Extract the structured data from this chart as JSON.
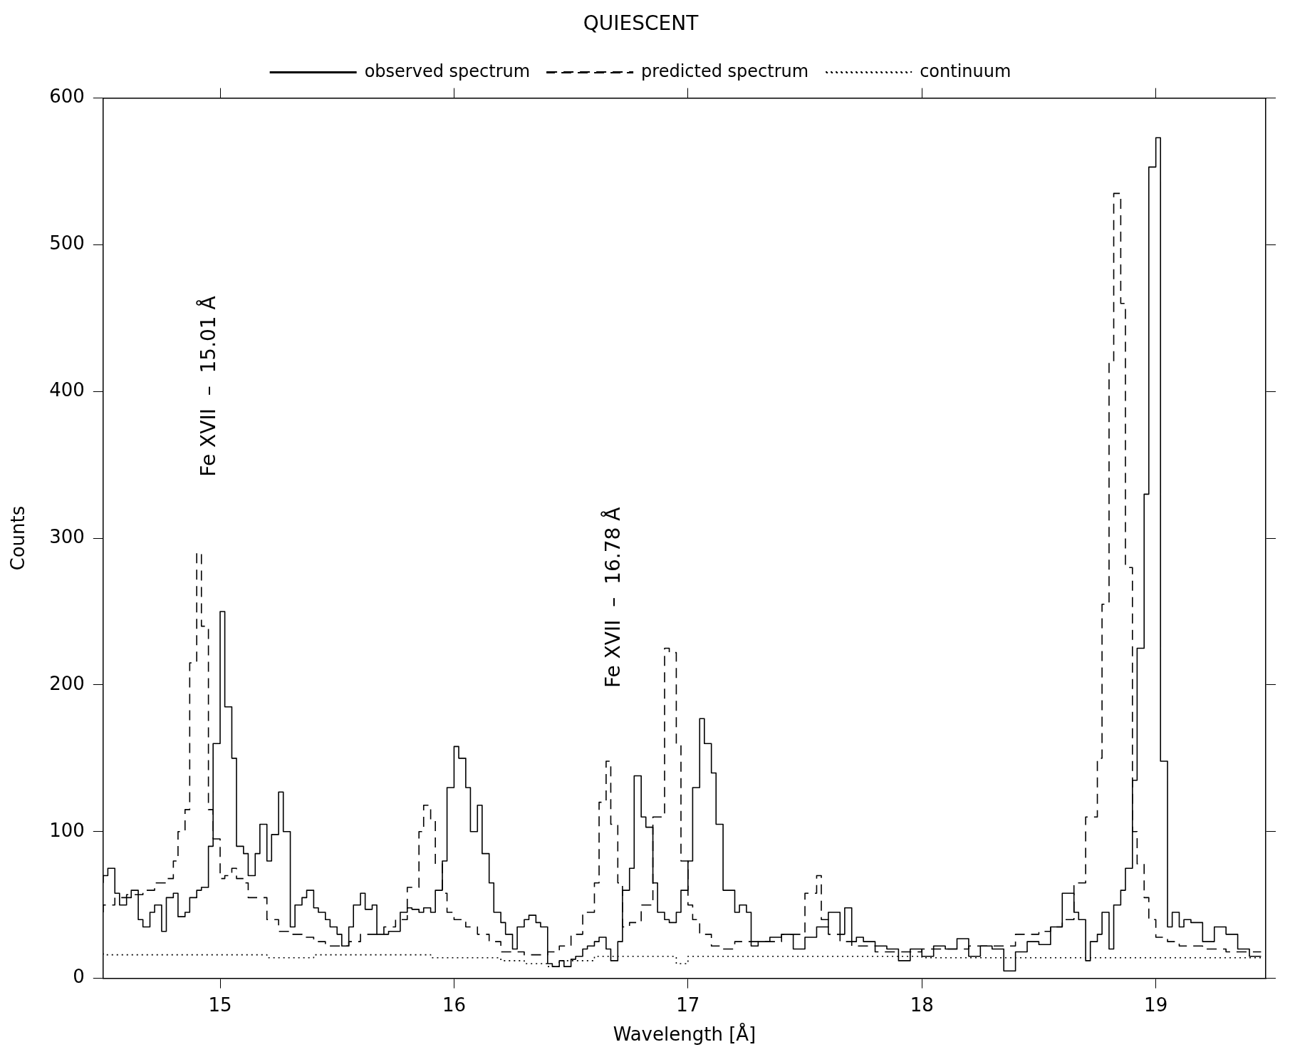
{
  "chart_data": {
    "type": "step",
    "title": "QUIESCENT",
    "xlabel": "Wavelength [Å]",
    "ylabel": "Counts",
    "xlim": [
      14.5,
      19.47
    ],
    "xticks": [
      15,
      16,
      17,
      18,
      19
    ],
    "ylim": [
      0,
      600
    ],
    "yticks": [
      0,
      100,
      200,
      300,
      400,
      500,
      600
    ],
    "grid": false,
    "legend": "top",
    "annotations": [
      "Fe XVII  –  15.01 Å",
      "Fe XVII  –  16.78 Å"
    ],
    "series": [
      {
        "name": "observed spectrum",
        "color": "#000000",
        "line_style": "solid",
        "x": [
          14.5,
          14.52,
          14.55,
          14.57,
          14.6,
          14.62,
          14.65,
          14.67,
          14.7,
          14.72,
          14.75,
          14.77,
          14.8,
          14.82,
          14.85,
          14.87,
          14.9,
          14.92,
          14.95,
          14.97,
          15.0,
          15.02,
          15.05,
          15.07,
          15.1,
          15.12,
          15.15,
          15.17,
          15.2,
          15.22,
          15.25,
          15.27,
          15.3,
          15.32,
          15.35,
          15.37,
          15.4,
          15.42,
          15.45,
          15.47,
          15.5,
          15.52,
          15.55,
          15.57,
          15.6,
          15.62,
          15.65,
          15.67,
          15.7,
          15.72,
          15.75,
          15.77,
          15.8,
          15.82,
          15.85,
          15.87,
          15.9,
          15.92,
          15.95,
          15.97,
          16.0,
          16.02,
          16.05,
          16.07,
          16.1,
          16.12,
          16.15,
          16.17,
          16.2,
          16.22,
          16.25,
          16.27,
          16.3,
          16.32,
          16.35,
          16.37,
          16.4,
          16.42,
          16.45,
          16.47,
          16.5,
          16.52,
          16.55,
          16.57,
          16.6,
          16.62,
          16.65,
          16.67,
          16.7,
          16.72,
          16.75,
          16.77,
          16.8,
          16.82,
          16.85,
          16.87,
          16.9,
          16.92,
          16.95,
          16.97,
          17.0,
          17.02,
          17.05,
          17.07,
          17.1,
          17.12,
          17.15,
          17.17,
          17.2,
          17.22,
          17.25,
          17.27,
          17.3,
          17.35,
          17.4,
          17.45,
          17.5,
          17.55,
          17.6,
          17.65,
          17.67,
          17.7,
          17.72,
          17.75,
          17.8,
          17.85,
          17.9,
          17.95,
          18.0,
          18.05,
          18.1,
          18.15,
          18.2,
          18.25,
          18.3,
          18.35,
          18.4,
          18.45,
          18.5,
          18.55,
          18.6,
          18.65,
          18.67,
          18.7,
          18.72,
          18.75,
          18.77,
          18.8,
          18.82,
          18.85,
          18.87,
          18.9,
          18.92,
          18.95,
          18.97,
          19.0,
          19.02,
          19.05,
          19.07,
          19.1,
          19.12,
          19.15,
          19.2,
          19.25,
          19.3,
          19.35,
          19.4,
          19.45
        ],
        "values": [
          65,
          70,
          75,
          58,
          50,
          55,
          60,
          40,
          35,
          45,
          50,
          32,
          55,
          58,
          42,
          45,
          55,
          60,
          62,
          90,
          160,
          250,
          185,
          150,
          90,
          85,
          70,
          85,
          105,
          80,
          98,
          127,
          100,
          35,
          50,
          55,
          60,
          48,
          45,
          40,
          35,
          30,
          22,
          35,
          50,
          58,
          47,
          50,
          30,
          30,
          32,
          32,
          45,
          48,
          47,
          45,
          48,
          45,
          60,
          80,
          130,
          158,
          150,
          130,
          100,
          118,
          85,
          65,
          45,
          38,
          30,
          20,
          35,
          40,
          43,
          38,
          35,
          10,
          8,
          12,
          8,
          13,
          15,
          20,
          22,
          25,
          28,
          20,
          12,
          25,
          60,
          75,
          138,
          110,
          103,
          65,
          45,
          40,
          38,
          45,
          60,
          80,
          130,
          177,
          160,
          140,
          105,
          60,
          60,
          45,
          50,
          45,
          22,
          25,
          28,
          30,
          20,
          28,
          35,
          45,
          30,
          48,
          25,
          28,
          25,
          22,
          20,
          12,
          20,
          15,
          22,
          20,
          27,
          15,
          22,
          20,
          5,
          18,
          25,
          23,
          35,
          58,
          45,
          40,
          12,
          25,
          30,
          45,
          20,
          50,
          60,
          75,
          135,
          225,
          330,
          553,
          573,
          148,
          35,
          45,
          35,
          40,
          38,
          25,
          35,
          30,
          20,
          15
        ]
      },
      {
        "name": "predicted spectrum",
        "color": "#000000",
        "line_style": "dashed",
        "x": [
          14.5,
          14.55,
          14.6,
          14.67,
          14.72,
          14.77,
          14.8,
          14.82,
          14.85,
          14.87,
          14.9,
          14.92,
          14.95,
          14.97,
          15.0,
          15.02,
          15.05,
          15.07,
          15.1,
          15.12,
          15.2,
          15.25,
          15.3,
          15.35,
          15.4,
          15.45,
          15.55,
          15.6,
          15.7,
          15.75,
          15.8,
          15.85,
          15.87,
          15.9,
          15.92,
          15.95,
          15.97,
          16.0,
          16.05,
          16.1,
          16.15,
          16.2,
          16.3,
          16.4,
          16.45,
          16.5,
          16.55,
          16.6,
          16.62,
          16.65,
          16.67,
          16.7,
          16.72,
          16.75,
          16.8,
          16.85,
          16.9,
          16.92,
          16.95,
          16.97,
          17.0,
          17.02,
          17.05,
          17.1,
          17.15,
          17.2,
          17.4,
          17.5,
          17.55,
          17.57,
          17.6,
          17.65,
          17.7,
          17.8,
          18.0,
          18.2,
          18.4,
          18.5,
          18.55,
          18.6,
          18.65,
          18.7,
          18.75,
          18.77,
          18.8,
          18.82,
          18.85,
          18.87,
          18.9,
          18.92,
          18.95,
          18.97,
          19.0,
          19.05,
          19.1,
          19.2,
          19.3,
          19.45
        ],
        "values": [
          45,
          50,
          55,
          57,
          60,
          65,
          68,
          80,
          100,
          115,
          215,
          290,
          240,
          115,
          95,
          68,
          70,
          75,
          68,
          65,
          55,
          40,
          32,
          30,
          28,
          25,
          22,
          25,
          30,
          35,
          40,
          62,
          100,
          118,
          108,
          78,
          58,
          45,
          40,
          35,
          30,
          25,
          18,
          16,
          18,
          22,
          30,
          45,
          65,
          120,
          148,
          105,
          65,
          35,
          38,
          50,
          110,
          225,
          222,
          160,
          80,
          50,
          40,
          30,
          22,
          20,
          25,
          30,
          58,
          70,
          40,
          30,
          25,
          22,
          18,
          20,
          22,
          30,
          32,
          35,
          40,
          65,
          110,
          150,
          255,
          420,
          535,
          460,
          280,
          100,
          78,
          55,
          40,
          28,
          25,
          22,
          20,
          18
        ]
      },
      {
        "name": "continuum",
        "color": "#000000",
        "line_style": "dotted",
        "x": [
          14.5,
          15.2,
          15.4,
          15.6,
          15.9,
          16.2,
          16.3,
          16.4,
          16.45,
          16.6,
          16.75,
          16.95,
          17.0,
          17.2,
          17.5,
          18.0,
          19.0,
          19.45
        ],
        "values": [
          17,
          16,
          14,
          16,
          16,
          14,
          12,
          10,
          8,
          12,
          15,
          15,
          10,
          15,
          15,
          15,
          14,
          14
        ]
      }
    ]
  }
}
